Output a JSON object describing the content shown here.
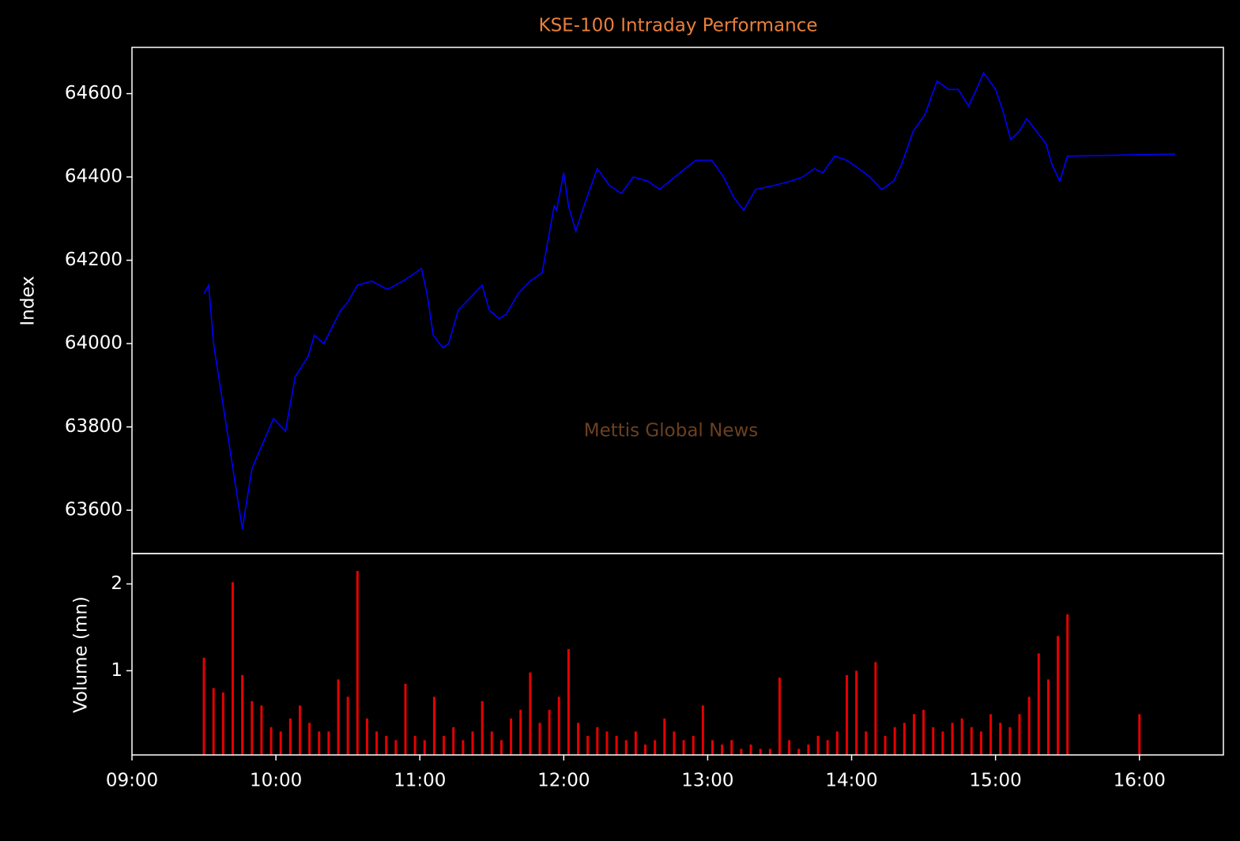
{
  "chart_data": [
    {
      "type": "line",
      "title": "KSE-100 Intraday Performance",
      "ylabel": "Index",
      "annotation": "Mettis Global News",
      "color": "#0000ff",
      "xlim": [
        540,
        995
      ],
      "ylim": [
        63496,
        64711
      ],
      "yticks": [
        63600,
        63800,
        64000,
        64200,
        64400,
        64600
      ],
      "x": [
        570,
        572,
        574,
        586,
        590,
        599,
        604,
        608,
        613.5,
        616,
        620,
        627,
        630,
        634,
        640,
        646.5,
        653,
        660.7,
        663,
        665.6,
        669.6,
        672,
        676,
        681,
        686,
        689,
        693,
        696,
        701,
        706,
        711,
        716,
        717,
        720,
        722,
        725,
        729,
        734,
        739,
        744,
        749,
        755,
        760,
        768.5,
        775,
        781.7,
        786.6,
        791,
        795,
        800,
        808,
        814.6,
        819.6,
        824.5,
        828,
        833,
        838,
        843,
        847.6,
        852.6,
        857.5,
        860.8,
        865.7,
        870.6,
        875.6,
        880.5,
        884.5,
        888.8,
        892,
        895,
        900,
        903,
        906.3,
        910,
        913,
        917,
        921,
        923.5,
        926.8,
        930,
        974.9
      ],
      "values": [
        64120,
        64140,
        64000,
        63555,
        63700,
        63820,
        63790,
        63920,
        63970,
        64020,
        64000,
        64080,
        64100,
        64140,
        64150,
        64130,
        64150,
        64180,
        64120,
        64020,
        63990,
        64000,
        64080,
        64110,
        64140,
        64080,
        64060,
        64070,
        64120,
        64150,
        64170,
        64330,
        64320,
        64410,
        64330,
        64270,
        64340,
        64420,
        64380,
        64360,
        64400,
        64390,
        64370,
        64410,
        64440,
        64440,
        64400,
        64350,
        64320,
        64370,
        64380,
        64390,
        64400,
        64420,
        64410,
        64450,
        64440,
        64420,
        64400,
        64370,
        64390,
        64430,
        64510,
        64550,
        64630,
        64610,
        64610,
        64570,
        64610,
        64650,
        64610,
        64560,
        64490,
        64510,
        64540,
        64510,
        64480,
        64430,
        64390,
        64450,
        64455
      ]
    },
    {
      "type": "bar",
      "ylabel": "Volume (mn)",
      "color": "#e60000",
      "xlim": [
        540,
        995
      ],
      "ylim": [
        0.03,
        2.35
      ],
      "yticks": [
        1,
        2
      ],
      "xticks": [
        {
          "value": 540,
          "label": "09:00"
        },
        {
          "value": 600,
          "label": "10:00"
        },
        {
          "value": 660,
          "label": "11:00"
        },
        {
          "value": 720,
          "label": "12:00"
        },
        {
          "value": 780,
          "label": "13:00"
        },
        {
          "value": 840,
          "label": "14:00"
        },
        {
          "value": 900,
          "label": "15:00"
        },
        {
          "value": 960,
          "label": "16:00"
        }
      ],
      "x": [
        570,
        574,
        578,
        582,
        586,
        590,
        594,
        598,
        602,
        606,
        610,
        614,
        618,
        622,
        626,
        630,
        634,
        638,
        642,
        646,
        650,
        654,
        658,
        662,
        666,
        670,
        674,
        678,
        682,
        686,
        690,
        694,
        698,
        702,
        706,
        710,
        714,
        718,
        722,
        726,
        730,
        734,
        738,
        742,
        746,
        750,
        754,
        758,
        762,
        766,
        770,
        774,
        778,
        782,
        786,
        790,
        794,
        798,
        802,
        806,
        810,
        814,
        818,
        822,
        826,
        830,
        834,
        838,
        842,
        846,
        850,
        854,
        858,
        862,
        866,
        870,
        874,
        878,
        882,
        886,
        890,
        894,
        898,
        902,
        906,
        910,
        914,
        918,
        922,
        926,
        930,
        960
      ],
      "values": [
        1.15,
        0.8,
        0.75,
        2.02,
        0.95,
        0.65,
        0.6,
        0.35,
        0.3,
        0.45,
        0.6,
        0.4,
        0.3,
        0.3,
        0.9,
        0.7,
        2.15,
        0.45,
        0.3,
        0.25,
        0.2,
        0.85,
        0.25,
        0.2,
        0.7,
        0.25,
        0.35,
        0.2,
        0.3,
        0.65,
        0.3,
        0.2,
        0.45,
        0.55,
        0.98,
        0.4,
        0.55,
        0.7,
        1.25,
        0.4,
        0.25,
        0.35,
        0.3,
        0.25,
        0.2,
        0.3,
        0.15,
        0.2,
        0.45,
        0.3,
        0.2,
        0.25,
        0.6,
        0.2,
        0.15,
        0.2,
        0.1,
        0.15,
        0.1,
        0.1,
        0.92,
        0.2,
        0.1,
        0.15,
        0.25,
        0.2,
        0.3,
        0.95,
        1.0,
        0.3,
        1.1,
        0.25,
        0.35,
        0.4,
        0.5,
        0.55,
        0.35,
        0.3,
        0.4,
        0.45,
        0.35,
        0.3,
        0.5,
        0.4,
        0.35,
        0.5,
        0.7,
        1.2,
        0.9,
        1.4,
        1.65,
        0.5
      ]
    }
  ]
}
